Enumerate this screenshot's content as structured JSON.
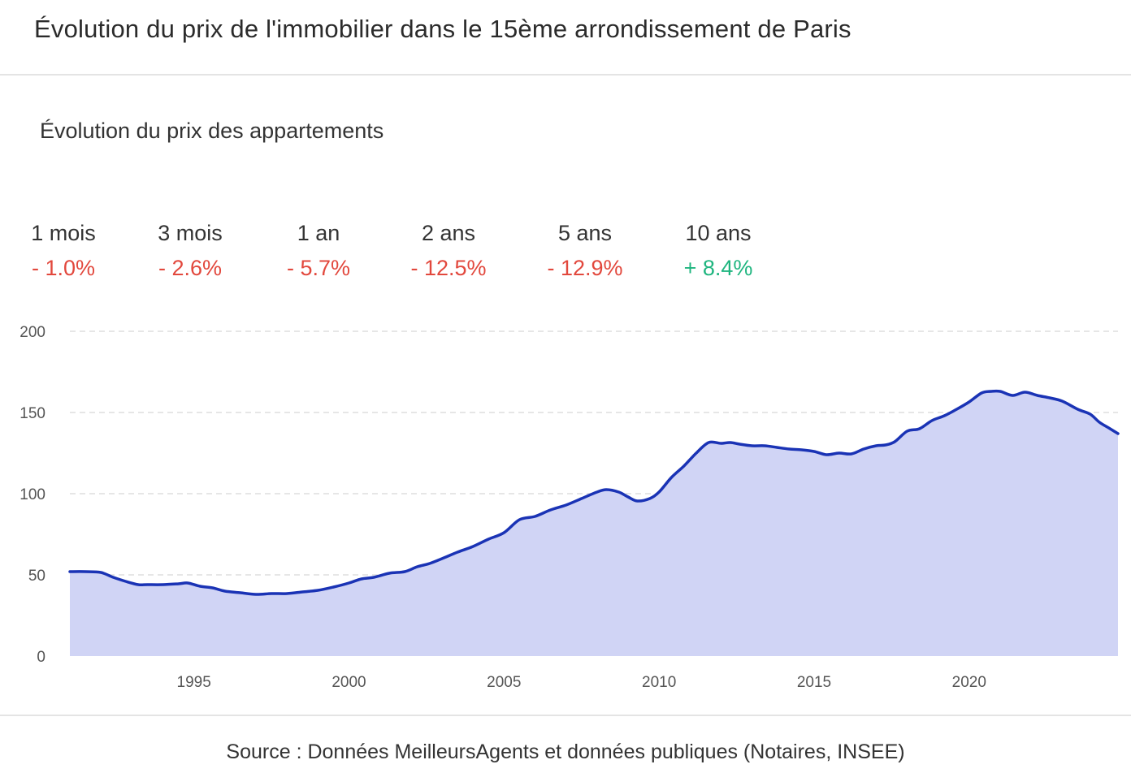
{
  "header": {
    "title": "Évolution du prix de l'immobilier dans le 15ème arrondissement de Paris"
  },
  "section": {
    "subtitle": "Évolution du prix des appartements"
  },
  "stats": [
    {
      "label": "1 mois",
      "value": "- 1.0%",
      "trend": "negative"
    },
    {
      "label": "3 mois",
      "value": "- 2.6%",
      "trend": "negative"
    },
    {
      "label": "1 an",
      "value": "- 5.7%",
      "trend": "negative"
    },
    {
      "label": "2 ans",
      "value": "- 12.5%",
      "trend": "negative"
    },
    {
      "label": "5 ans",
      "value": "- 12.9%",
      "trend": "negative"
    },
    {
      "label": "10 ans",
      "value": "+ 8.4%",
      "trend": "positive"
    }
  ],
  "colors": {
    "negative": "#e2483d",
    "positive": "#1fb57f",
    "line": "#1a33b5",
    "area": "#d0d4f5",
    "grid": "#dddddd"
  },
  "chart_data": {
    "type": "area",
    "title": "",
    "xlabel": "",
    "ylabel": "",
    "xlim": [
      1991,
      2024.8
    ],
    "ylim": [
      0,
      200
    ],
    "yticks": [
      0,
      50,
      100,
      150,
      200
    ],
    "xticks": [
      1995,
      2000,
      2005,
      2010,
      2015,
      2020
    ],
    "grid": "horizontal-dashed",
    "legend": "none",
    "x": [
      1991,
      1991.5,
      1992,
      1992.4,
      1992.8,
      1993.2,
      1993.5,
      1994,
      1994.5,
      1994.8,
      1995.2,
      1995.6,
      1996,
      1996.5,
      1997,
      1997.5,
      1998,
      1998.5,
      1999,
      1999.5,
      2000,
      2000.4,
      2000.8,
      2001.3,
      2001.8,
      2002.2,
      2002.6,
      2003,
      2003.5,
      2004,
      2004.5,
      2005,
      2005.5,
      2006,
      2006.5,
      2007,
      2007.5,
      2008,
      2008.3,
      2008.7,
      2009,
      2009.3,
      2009.7,
      2010,
      2010.4,
      2010.8,
      2011.2,
      2011.6,
      2012,
      2012.3,
      2012.6,
      2013,
      2013.4,
      2013.8,
      2014.2,
      2014.6,
      2015,
      2015.4,
      2015.8,
      2016.2,
      2016.6,
      2017,
      2017.3,
      2017.6,
      2018,
      2018.4,
      2018.8,
      2019.2,
      2019.6,
      2020,
      2020.4,
      2020.7,
      2021,
      2021.4,
      2021.8,
      2022.2,
      2022.6,
      2023,
      2023.5,
      2023.9,
      2024.2,
      2024.5,
      2024.8
    ],
    "series": [
      {
        "values": [
          52,
          52,
          51.5,
          48.5,
          46,
          44,
          44,
          44,
          44.5,
          45,
          43,
          42,
          40,
          39,
          38,
          38.5,
          38.5,
          39.5,
          40.5,
          42.5,
          45,
          47.5,
          48.5,
          51,
          52,
          55,
          57,
          60,
          64,
          67.5,
          72,
          76,
          84,
          86,
          90,
          93,
          97,
          101,
          102.5,
          101,
          98,
          95.5,
          97,
          101,
          110,
          117,
          125,
          131.5,
          131,
          131.5,
          130.5,
          129.5,
          129.5,
          128.5,
          127.5,
          127,
          126,
          124,
          125,
          124.5,
          127.5,
          129.5,
          130,
          132,
          138.5,
          140,
          145,
          148,
          152,
          156.5,
          162,
          163,
          163,
          160.5,
          162.5,
          160.5,
          159,
          157,
          152,
          149,
          144,
          140.5,
          137
        ]
      }
    ]
  },
  "footer": {
    "source": "Source : Données MeilleursAgents et données publiques (Notaires, INSEE)"
  }
}
